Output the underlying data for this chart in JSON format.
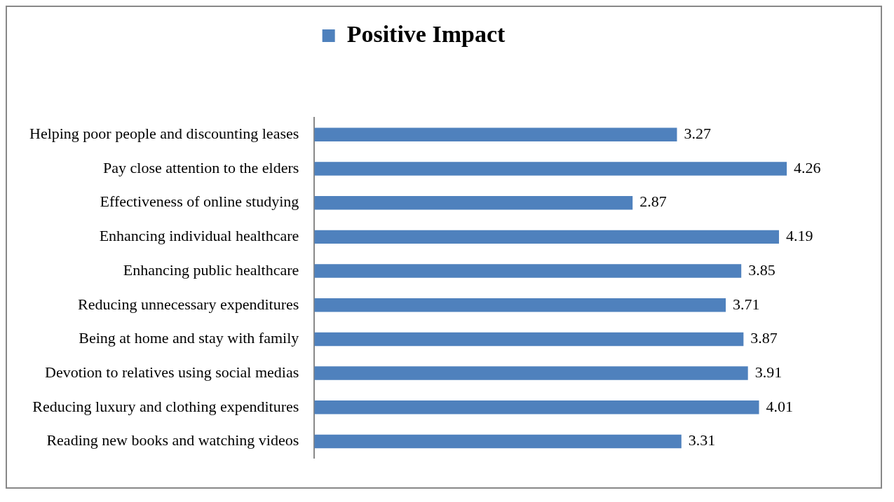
{
  "chart_data": {
    "type": "bar",
    "orientation": "horizontal",
    "categories": [
      "Helping poor people and discounting leases",
      "Pay close attention to the elders",
      "Effectiveness of online studying",
      "Enhancing individual healthcare",
      "Enhancing public healthcare",
      "Reducing unnecessary expenditures",
      "Being at home and stay with family",
      "Devotion to relatives using social medias",
      "Reducing luxury and clothing expenditures",
      "Reading new books and watching videos"
    ],
    "series": [
      {
        "name": "Positive Impact",
        "color": "#4f81bd",
        "values": [
          3.27,
          4.26,
          2.87,
          4.19,
          3.85,
          3.71,
          3.87,
          3.91,
          4.01,
          3.31
        ]
      }
    ],
    "tick_labels": "y",
    "data_labels": true,
    "legend": "top",
    "grid": false
  }
}
